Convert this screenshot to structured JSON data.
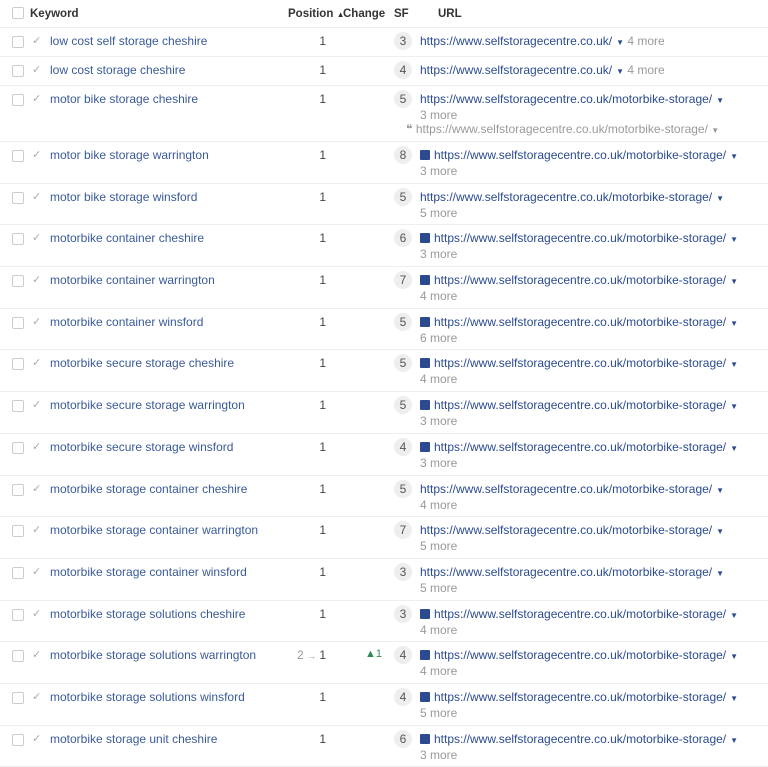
{
  "header": {
    "keyword": "Keyword",
    "position": "Position",
    "sort_icon": "sort-asc-icon",
    "change": "Change",
    "sf": "SF",
    "url": "URL"
  },
  "rows": [
    {
      "keyword": "low cost self storage cheshire",
      "position": "1",
      "sf": "3",
      "url": "https://www.selfstoragecentre.co.uk/",
      "more": "4 more",
      "inline_more": true
    },
    {
      "keyword": "low cost storage cheshire",
      "position": "1",
      "sf": "4",
      "url": "https://www.selfstoragecentre.co.uk/",
      "more": "4 more",
      "inline_more": true
    },
    {
      "keyword": "motor bike storage cheshire",
      "position": "1",
      "sf": "5",
      "url": "https://www.selfstoragecentre.co.uk/motorbike-storage/",
      "more": "3 more",
      "extra_url": "https://www.selfstoragecentre.co.uk/motorbike-storage/"
    },
    {
      "keyword": "motor bike storage warrington",
      "position": "1",
      "sf": "8",
      "url": "https://www.selfstoragecentre.co.uk/motorbike-storage/",
      "more": "3 more",
      "image": true
    },
    {
      "keyword": "motor bike storage winsford",
      "position": "1",
      "sf": "5",
      "url": "https://www.selfstoragecentre.co.uk/motorbike-storage/",
      "more": "5 more"
    },
    {
      "keyword": "motorbike container cheshire",
      "position": "1",
      "sf": "6",
      "url": "https://www.selfstoragecentre.co.uk/motorbike-storage/",
      "more": "3 more",
      "image": true
    },
    {
      "keyword": "motorbike container warrington",
      "position": "1",
      "sf": "7",
      "url": "https://www.selfstoragecentre.co.uk/motorbike-storage/",
      "more": "4 more",
      "image": true
    },
    {
      "keyword": "motorbike container winsford",
      "position": "1",
      "sf": "5",
      "url": "https://www.selfstoragecentre.co.uk/motorbike-storage/",
      "more": "6 more",
      "image": true
    },
    {
      "keyword": "motorbike secure storage cheshire",
      "position": "1",
      "sf": "5",
      "url": "https://www.selfstoragecentre.co.uk/motorbike-storage/",
      "more": "4 more",
      "image": true
    },
    {
      "keyword": "motorbike secure storage warrington",
      "position": "1",
      "sf": "5",
      "url": "https://www.selfstoragecentre.co.uk/motorbike-storage/",
      "more": "3 more",
      "image": true
    },
    {
      "keyword": "motorbike secure storage winsford",
      "position": "1",
      "sf": "4",
      "url": "https://www.selfstoragecentre.co.uk/motorbike-storage/",
      "more": "3 more",
      "image": true
    },
    {
      "keyword": "motorbike storage container cheshire",
      "position": "1",
      "sf": "5",
      "url": "https://www.selfstoragecentre.co.uk/motorbike-storage/",
      "more": "4 more"
    },
    {
      "keyword": "motorbike storage container warrington",
      "position": "1",
      "sf": "7",
      "url": "https://www.selfstoragecentre.co.uk/motorbike-storage/",
      "more": "5 more"
    },
    {
      "keyword": "motorbike storage container winsford",
      "position": "1",
      "sf": "3",
      "url": "https://www.selfstoragecentre.co.uk/motorbike-storage/",
      "more": "5 more"
    },
    {
      "keyword": "motorbike storage solutions cheshire",
      "position": "1",
      "sf": "3",
      "url": "https://www.selfstoragecentre.co.uk/motorbike-storage/",
      "more": "4 more",
      "image": true
    },
    {
      "keyword": "motorbike storage solutions warrington",
      "position": "1",
      "prev_position": "2",
      "change": "▲1",
      "sf": "4",
      "url": "https://www.selfstoragecentre.co.uk/motorbike-storage/",
      "more": "4 more",
      "image": true
    },
    {
      "keyword": "motorbike storage solutions winsford",
      "position": "1",
      "sf": "4",
      "url": "https://www.selfstoragecentre.co.uk/motorbike-storage/",
      "more": "5 more",
      "image": true
    },
    {
      "keyword": "motorbike storage unit cheshire",
      "position": "1",
      "sf": "6",
      "url": "https://www.selfstoragecentre.co.uk/motorbike-storage/",
      "more": "3 more",
      "image": true
    }
  ]
}
